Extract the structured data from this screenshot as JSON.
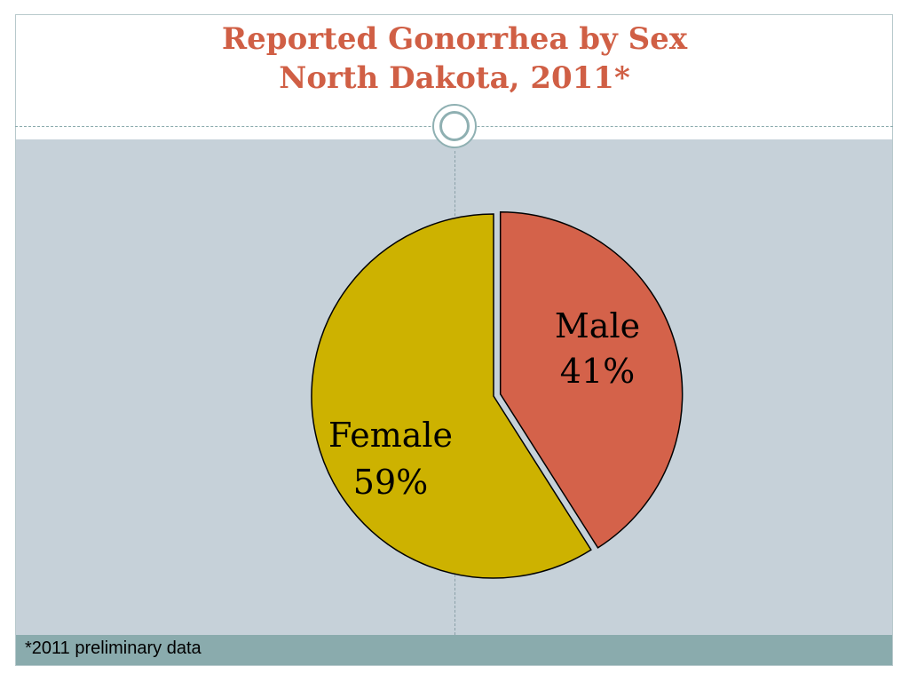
{
  "title": {
    "line1": "Reported Gonorrhea by Sex",
    "line2": "North Dakota, 2011*"
  },
  "footnote": "*2011 preliminary data",
  "colors": {
    "male": "#d4624a",
    "female": "#cdb200",
    "title": "#d05f45",
    "background": "#c6d1d9",
    "footer": "#8aabad"
  },
  "chart_data": {
    "type": "pie",
    "title": "Reported Gonorrhea by Sex North Dakota, 2011*",
    "slices": [
      {
        "name": "Male",
        "value": 41,
        "label": "Male",
        "percent_label": "41%",
        "exploded": true
      },
      {
        "name": "Female",
        "value": 59,
        "label": "Female",
        "percent_label": "59%",
        "exploded": false
      }
    ],
    "start_angle": "12 o'clock, clockwise",
    "legend": "none"
  }
}
